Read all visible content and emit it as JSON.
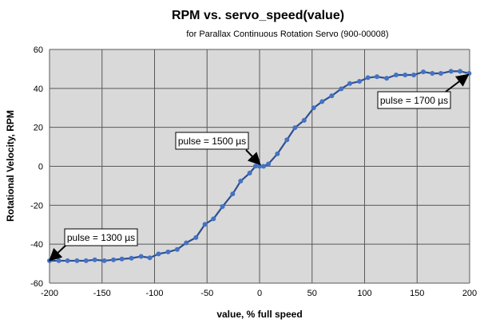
{
  "chart_data": {
    "type": "line",
    "title": "RPM vs. servo_speed(value)",
    "subtitle": "for Parallax Continuous Rotation Servo (900-00008)",
    "xlabel": "value, % full speed",
    "ylabel": "Rotational Velocity, RPM",
    "xlim": [
      -200,
      200
    ],
    "ylim": [
      -60,
      60
    ],
    "xticks": [
      -200,
      -150,
      -100,
      -50,
      0,
      50,
      100,
      150,
      200
    ],
    "yticks": [
      -60,
      -40,
      -20,
      0,
      20,
      40,
      60
    ],
    "grid": true,
    "colors": {
      "line": "#2e4f8f",
      "marker": "#4472c4",
      "plot_bg": "#d9d9d9",
      "grid": "#595959"
    },
    "series": [
      {
        "name": "RPM",
        "x": [
          -200,
          -191.2,
          -182.8,
          -173.8,
          -165.2,
          -156.9,
          -147.8,
          -139.1,
          -131.1,
          -122,
          -112.8,
          -104.5,
          -96.2,
          -87.1,
          -78.4,
          -69.8,
          -60.6,
          -52,
          -43.9,
          -35.3,
          -25.6,
          -18,
          -9.4,
          -3.8,
          0,
          3.8,
          8.4,
          17,
          26.1,
          33.7,
          42.4,
          51.5,
          59.5,
          68.7,
          77.8,
          85.9,
          95.1,
          103.2,
          111.8,
          121,
          130,
          138.6,
          146.8,
          155.9,
          164.5,
          172.6,
          182.3,
          190.9,
          199.5
        ],
        "y": [
          -48.5,
          -48.5,
          -48.5,
          -48.5,
          -48.5,
          -48,
          -48.5,
          -48,
          -47.6,
          -47.2,
          -46.3,
          -47,
          -45,
          -44,
          -42.7,
          -39.3,
          -36.6,
          -29.8,
          -27,
          -20.7,
          -14.2,
          -7.6,
          -3.5,
          0.1,
          0,
          0,
          1.2,
          6.4,
          13.6,
          19.8,
          23.6,
          30,
          33.2,
          36.2,
          39.8,
          42.5,
          43.6,
          45.5,
          46,
          45.2,
          46.9,
          46.9,
          46.9,
          48.5,
          47.7,
          47.7,
          48.8,
          48.8,
          47.7
        ]
      }
    ],
    "annotations": [
      {
        "text": "pulse = 1300 µs",
        "x": -200,
        "y": -48.5
      },
      {
        "text": "pulse = 1500 µs",
        "x": 0,
        "y": 0
      },
      {
        "text": "pulse = 1700 µs",
        "x": 199.5,
        "y": 47.7
      }
    ]
  }
}
